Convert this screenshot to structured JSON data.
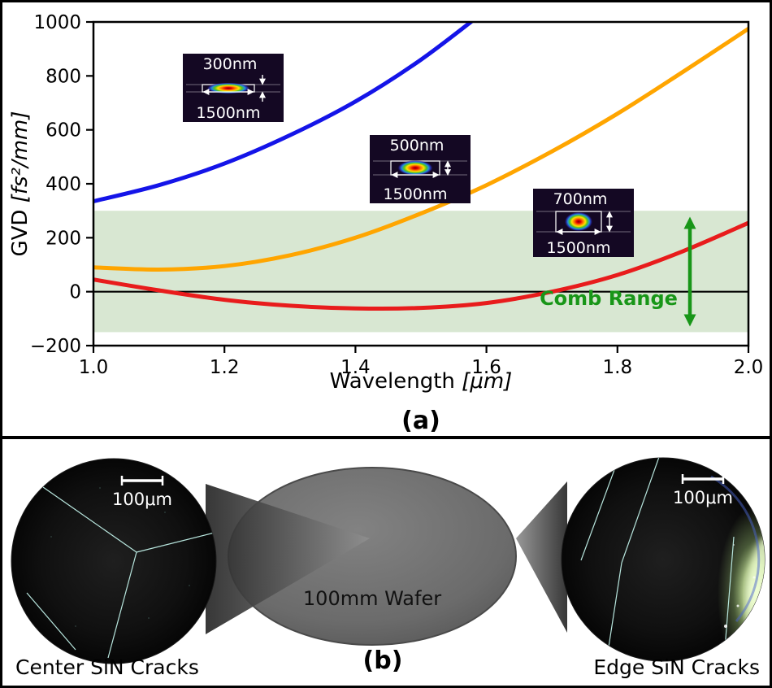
{
  "panel_a": {
    "label": "(a)",
    "axes": {
      "ylabel_text": "GVD ",
      "ylabel_units": "[fs²/mm]",
      "xlabel_text": "Wavelength ",
      "xlabel_units": "[μm]"
    },
    "insets": [
      {
        "height_label": "300nm",
        "width_label": "1500nm"
      },
      {
        "height_label": "500nm",
        "width_label": "1500nm"
      },
      {
        "height_label": "700nm",
        "width_label": "1500nm"
      }
    ]
  },
  "chart_data": {
    "type": "line",
    "title": "",
    "xlabel": "Wavelength [μm]",
    "ylabel": "GVD [fs²/mm]",
    "xlim": [
      1.0,
      2.0
    ],
    "ylim": [
      -200,
      1000
    ],
    "xticks": [
      1.0,
      1.2,
      1.4,
      1.6,
      1.8,
      2.0
    ],
    "yticks": [
      -200,
      0,
      200,
      400,
      600,
      800,
      1000
    ],
    "grid": false,
    "legend": "none (series labeled by mode-profile insets)",
    "x": [
      1.0,
      1.1,
      1.2,
      1.3,
      1.4,
      1.5,
      1.6,
      1.7,
      1.8,
      1.9,
      2.0
    ],
    "series": [
      {
        "name": "300nm x 1500nm waveguide",
        "color": "#1414e8",
        "values": [
          335,
          395,
          475,
          580,
          705,
          860,
          1045,
          null,
          null,
          null,
          null
        ]
      },
      {
        "name": "500nm x 1500nm waveguide",
        "color": "#ffa500",
        "values": [
          90,
          82,
          95,
          135,
          200,
          290,
          395,
          520,
          660,
          815,
          975
        ]
      },
      {
        "name": "700nm x 1500nm waveguide",
        "color": "#e81c1c",
        "values": [
          45,
          5,
          -30,
          -52,
          -62,
          -60,
          -42,
          0,
          62,
          150,
          255
        ]
      }
    ],
    "zero_line": 0,
    "band": {
      "ymin": -150,
      "ymax": 300,
      "color": "#d8e7d2",
      "label": "Comb Range",
      "label_color": "#189618"
    }
  },
  "panel_b": {
    "label": "(b)",
    "wafer_label": "100mm Wafer",
    "left_scale_label": "100μm",
    "right_scale_label": "100μm",
    "left_caption": "Center SiN Cracks",
    "right_caption": "Edge SiN Cracks"
  }
}
